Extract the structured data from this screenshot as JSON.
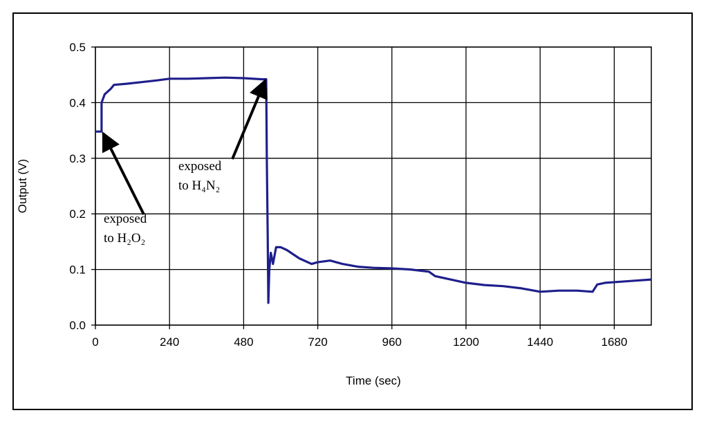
{
  "chart_data": {
    "type": "line",
    "title": "",
    "xlabel": "Time (sec)",
    "ylabel": "Output (V)",
    "xlim": [
      0,
      1800
    ],
    "ylim": [
      0,
      0.5
    ],
    "x_ticks": [
      0,
      240,
      480,
      720,
      960,
      1200,
      1440,
      1680
    ],
    "x_tick_labels": [
      "0",
      "240",
      "480",
      "720",
      "960",
      "1200",
      "1440",
      "1680"
    ],
    "y_ticks": [
      0,
      0.1,
      0.2,
      0.3,
      0.4,
      0.5
    ],
    "y_tick_labels": [
      "0.0",
      "0.1",
      "0.2",
      "0.3",
      "0.4",
      "0.5"
    ],
    "grid": true,
    "legend": "none",
    "line_color": "#1f1f8c",
    "series": [
      {
        "x": [
          0,
          20,
          20,
          30,
          50,
          60,
          100,
          150,
          200,
          240,
          300,
          360,
          420,
          480,
          540,
          553,
          555,
          558,
          560,
          563,
          568,
          575,
          585,
          600,
          620,
          660,
          700,
          720,
          760,
          800,
          850,
          900,
          960,
          1020,
          1080,
          1100,
          1150,
          1200,
          1260,
          1320,
          1380,
          1440,
          1500,
          1560,
          1610,
          1625,
          1650,
          1700,
          1750,
          1800
        ],
        "y": [
          0.348,
          0.348,
          0.4,
          0.415,
          0.425,
          0.432,
          0.434,
          0.437,
          0.44,
          0.443,
          0.443,
          0.444,
          0.445,
          0.444,
          0.442,
          0.442,
          0.3,
          0.16,
          0.04,
          0.1,
          0.13,
          0.11,
          0.14,
          0.14,
          0.135,
          0.12,
          0.11,
          0.113,
          0.116,
          0.11,
          0.105,
          0.103,
          0.102,
          0.1,
          0.096,
          0.088,
          0.082,
          0.076,
          0.072,
          0.07,
          0.066,
          0.06,
          0.062,
          0.062,
          0.06,
          0.073,
          0.076,
          0.078,
          0.08,
          0.082
        ]
      }
    ],
    "annotations": [
      {
        "lines": [
          "exposed",
          "to H₂O₂"
        ],
        "arrow_to": [
          25,
          0.345
        ]
      },
      {
        "lines": [
          "exposed",
          "to H₄N₂"
        ],
        "arrow_to": [
          550,
          0.44
        ]
      }
    ]
  }
}
